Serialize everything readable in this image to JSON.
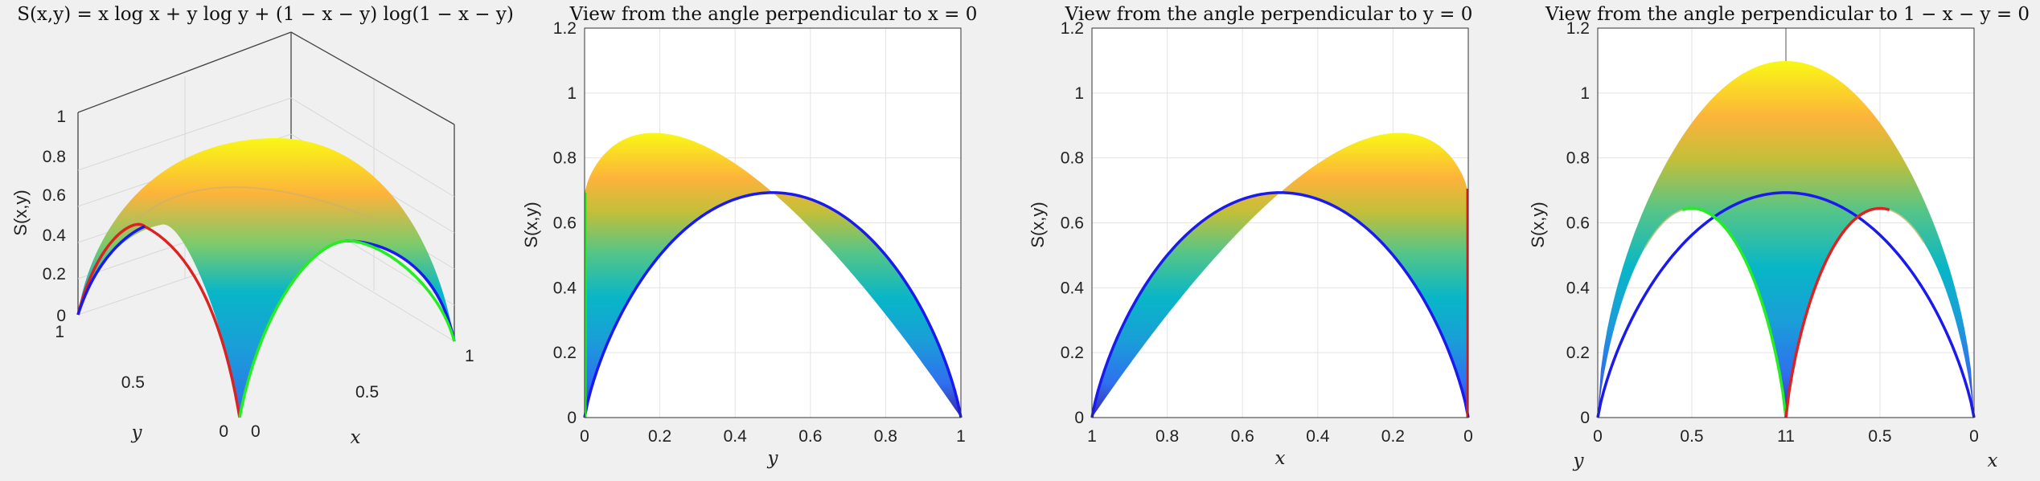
{
  "chart_data": [
    {
      "type": "surface3d",
      "title": "S(x,y) = x log x + y log y + (1 − x − y) log(1 − x − y)",
      "zlabel": "S(x,y)",
      "xlabel": "x",
      "ylabel": "y",
      "zlim": [
        0,
        1.1
      ],
      "z_ticks": [
        "0",
        "0.2",
        "0.4",
        "0.6",
        "0.8",
        "1"
      ],
      "x_ticks": [
        "0",
        "0.5",
        "1"
      ],
      "y_ticks": [
        "0",
        "0.5",
        "1"
      ],
      "grid": true,
      "colormap": "parula",
      "edge_curves": [
        {
          "edge": "x = 0",
          "color": "#dd2222",
          "peak": 0.693
        },
        {
          "edge": "y = 0",
          "color": "#22ee22",
          "peak": 0.693
        },
        {
          "edge": "1 − x − y = 0",
          "color": "#1a1aee",
          "peak": 0.693
        }
      ]
    },
    {
      "type": "projection",
      "title": "View from the angle perpendicular to x = 0",
      "ylabel": "S(x,y)",
      "xlabel": "y",
      "xlim": [
        0,
        1
      ],
      "ylim": [
        0,
        1.2
      ],
      "x_ticks": [
        "0",
        "0.2",
        "0.4",
        "0.6",
        "0.8",
        "1"
      ],
      "y_ticks": [
        "0",
        "0.2",
        "0.4",
        "0.6",
        "0.8",
        "1",
        "1.2"
      ],
      "surface_max": 1.0986,
      "curves": [
        {
          "color": "#1a1aee",
          "peak": 0.693
        },
        {
          "color": "#22ee22",
          "vertical_at": 0
        }
      ]
    },
    {
      "type": "projection",
      "title": "View from the angle perpendicular to y = 0",
      "ylabel": "S(x,y)",
      "xlabel": "x",
      "xlim": [
        1,
        0
      ],
      "ylim": [
        0,
        1.2
      ],
      "x_ticks": [
        "1",
        "0.8",
        "0.6",
        "0.4",
        "0.2",
        "0"
      ],
      "y_ticks": [
        "0",
        "0.2",
        "0.4",
        "0.6",
        "0.8",
        "1",
        "1.2"
      ],
      "surface_max": 1.0986,
      "curves": [
        {
          "color": "#1a1aee",
          "peak": 0.693
        },
        {
          "color": "#dd2222",
          "vertical_at": 0
        }
      ]
    },
    {
      "type": "projection",
      "title": "View from the angle perpendicular to 1 − x − y = 0",
      "ylabel": "S(x,y)",
      "xlabel": "x",
      "extra_label": "y",
      "x_ticks": [
        "0",
        "0.5",
        "11",
        "0.5",
        "0"
      ],
      "y_ticks": [
        "0",
        "0.2",
        "0.4",
        "0.6",
        "0.8",
        "1",
        "1.2"
      ],
      "surface_max": 1.0986,
      "curves": [
        {
          "color": "#1a1aee",
          "peak": 0.693
        },
        {
          "color": "#22ee22",
          "peak": 0.693
        },
        {
          "color": "#dd2222",
          "peak": 0.693
        }
      ]
    }
  ]
}
